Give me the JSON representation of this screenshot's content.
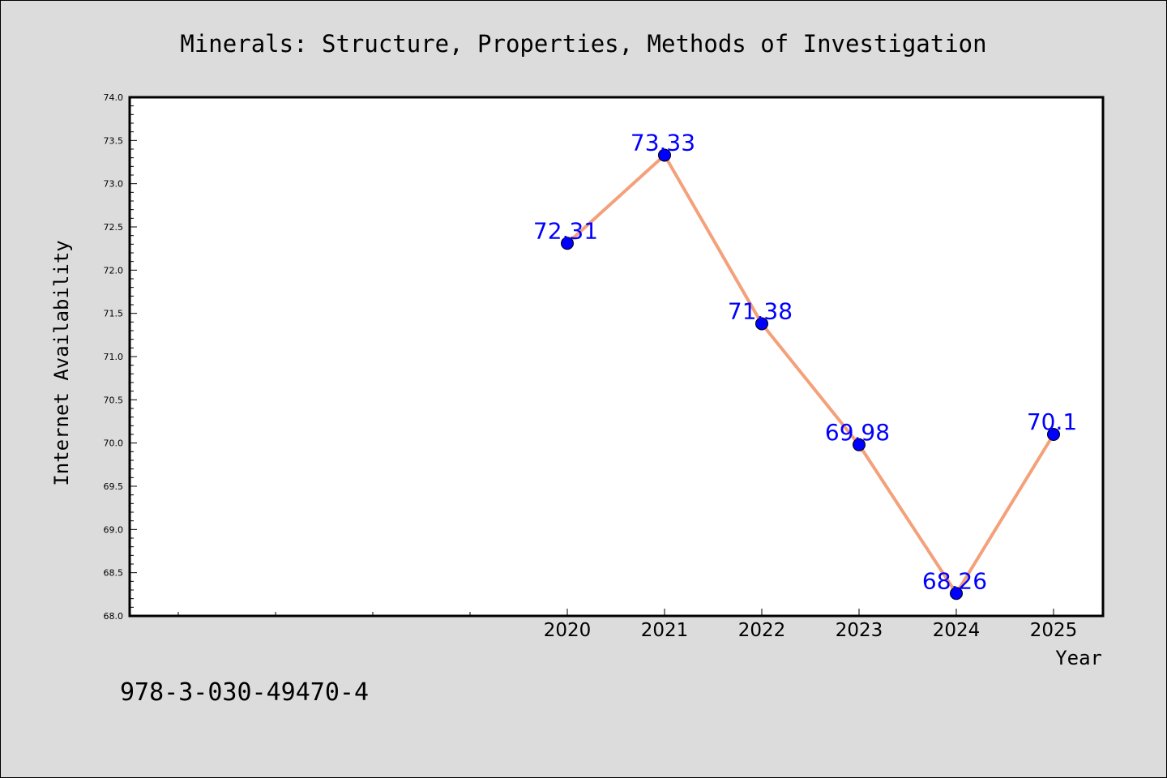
{
  "chart_data": {
    "type": "line",
    "title": "Minerals: Structure, Properties, Methods of Investigation",
    "xlabel": "Year",
    "ylabel": "Internet Availability",
    "x": [
      "2020",
      "2021",
      "2022",
      "2023",
      "2024",
      "2025"
    ],
    "values": [
      72.31,
      73.33,
      71.38,
      69.98,
      68.26,
      70.1
    ],
    "data_labels": [
      "72.31",
      "73.33",
      "71.38",
      "69.98",
      "68.26",
      "70.1"
    ],
    "ylim": [
      68.0,
      74.0
    ],
    "y_ticks": [
      "68.0",
      "68.5",
      "69.0",
      "69.5",
      "70.0",
      "70.5",
      "71.0",
      "71.5",
      "72.0",
      "72.5",
      "73.0",
      "73.5",
      "74.0"
    ],
    "grid": false,
    "legend": "none",
    "colors": {
      "line": "#f4a07a",
      "marker": "#0000ff",
      "data_label": "#0000ff",
      "plot_background": "#ffffff",
      "figure_background": "#dcdcdc"
    }
  },
  "footer_text": "978-3-030-49470-4"
}
